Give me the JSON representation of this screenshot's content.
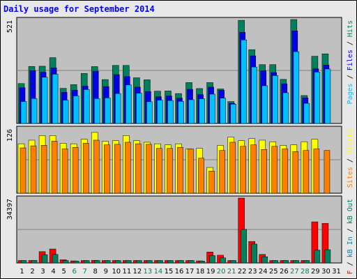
{
  "title": "Daily usage for September 2014",
  "colors": {
    "background": "#e8e8e8",
    "plot": "#c0c0c0",
    "hits": "#00805c",
    "files": "#0000e6",
    "pages": "#00c0ff",
    "visits": "#ffff00",
    "sites": "#ff8000",
    "kb_in": "#0080c0",
    "kb_out": "#00805c",
    "kb_f": "#ff0000",
    "weekday": "#000000",
    "weekend": "#00805c"
  },
  "chart_data": [
    {
      "type": "bar",
      "panel": "hits-files-pages",
      "ymax_label": "521",
      "ylim": [
        0,
        521
      ],
      "legend": {
        "pages": "Pages",
        "files": "Files",
        "hits": "Hits",
        "sep": " / "
      },
      "categories": [
        "1",
        "2",
        "3",
        "4",
        "5",
        "6",
        "7",
        "8",
        "9",
        "10",
        "11",
        "12",
        "13",
        "14",
        "15",
        "16",
        "17",
        "18",
        "19",
        "20",
        "21",
        "22",
        "23",
        "24",
        "25",
        "26",
        "27",
        "28",
        "29",
        "30",
        "31"
      ],
      "series": [
        {
          "name": "Hits",
          "values": [
            200,
            286,
            287,
            330,
            176,
            195,
            251,
            285,
            220,
            291,
            291,
            229,
            219,
            162,
            163,
            150,
            205,
            175,
            205,
            173,
            110,
            517,
            370,
            295,
            295,
            221,
            521,
            140,
            337,
            349,
            0
          ]
        },
        {
          "name": "Files",
          "values": [
            179,
            265,
            257,
            279,
            156,
            167,
            187,
            262,
            185,
            245,
            235,
            182,
            160,
            134,
            138,
            127,
            171,
            145,
            182,
            167,
            101,
            457,
            339,
            264,
            255,
            199,
            464,
            128,
            274,
            293,
            0
          ]
        },
        {
          "name": "Pages",
          "values": [
            110,
            125,
            232,
            247,
            117,
            138,
            170,
            125,
            128,
            150,
            193,
            152,
            109,
            117,
            115,
            111,
            119,
            124,
            147,
            127,
            97,
            419,
            283,
            189,
            240,
            154,
            360,
            101,
            258,
            273,
            0
          ]
        }
      ]
    },
    {
      "type": "bar",
      "panel": "visits-sites",
      "ymax_label": "126",
      "ylim": [
        0,
        126
      ],
      "legend": {
        "sites": "Sites",
        "visits": "Visits",
        "sep": " / "
      },
      "categories": [
        "1",
        "2",
        "3",
        "4",
        "5",
        "6",
        "7",
        "8",
        "9",
        "10",
        "11",
        "12",
        "13",
        "14",
        "15",
        "16",
        "17",
        "18",
        "19",
        "20",
        "21",
        "22",
        "23",
        "24",
        "25",
        "26",
        "27",
        "28",
        "29",
        "30",
        "31"
      ],
      "series": [
        {
          "name": "Visits",
          "values": [
            96,
            103,
            112,
            112,
            97,
            96,
            105,
            118,
            101,
            102,
            112,
            102,
            99,
            96,
            94,
            96,
            86,
            87,
            50,
            93,
            109,
            102,
            106,
            103,
            100,
            93,
            94,
            100,
            105,
            0,
            0
          ]
        },
        {
          "name": "Sites",
          "values": [
            88,
            92,
            93,
            101,
            86,
            89,
            97,
            103,
            94,
            95,
            99,
            96,
            95,
            87,
            87,
            89,
            86,
            68,
            43,
            83,
            99,
            91,
            94,
            85,
            91,
            86,
            81,
            83,
            86,
            83,
            0
          ]
        }
      ]
    },
    {
      "type": "bar",
      "panel": "kbytes",
      "ymax_label": "34397",
      "ylim": [
        0,
        34397
      ],
      "legend": {
        "kb_f": "kB F",
        "kb_in": "kB In",
        "kb_out": "kB Out",
        "sep": " / "
      },
      "categories": [
        "1",
        "2",
        "3",
        "4",
        "5",
        "6",
        "7",
        "8",
        "9",
        "10",
        "11",
        "12",
        "13",
        "14",
        "15",
        "16",
        "17",
        "18",
        "19",
        "20",
        "21",
        "22",
        "23",
        "24",
        "25",
        "26",
        "27",
        "28",
        "29",
        "30",
        "31"
      ],
      "series": [
        {
          "name": "kB F",
          "values": [
            1300,
            1300,
            6000,
            7400,
            1700,
            1100,
            1300,
            1400,
            1300,
            1300,
            1300,
            1300,
            1300,
            1300,
            1300,
            1300,
            1300,
            1100,
            5800,
            4100,
            1300,
            34397,
            11400,
            4500,
            1300,
            1300,
            1300,
            1300,
            21800,
            21000,
            0
          ]
        },
        {
          "name": "kB Out",
          "values": [
            1300,
            1400,
            4400,
            4500,
            1300,
            1000,
            1300,
            1300,
            1300,
            1300,
            1300,
            1300,
            1300,
            1300,
            1300,
            1300,
            1300,
            1000,
            3900,
            2700,
            1300,
            17800,
            10000,
            3300,
            1300,
            1300,
            1300,
            1300,
            6800,
            7000,
            0
          ]
        }
      ]
    }
  ],
  "days": [
    {
      "label": "1",
      "weekend": false
    },
    {
      "label": "2",
      "weekend": false
    },
    {
      "label": "3",
      "weekend": false
    },
    {
      "label": "4",
      "weekend": false
    },
    {
      "label": "5",
      "weekend": false
    },
    {
      "label": "6",
      "weekend": true
    },
    {
      "label": "7",
      "weekend": true
    },
    {
      "label": "8",
      "weekend": false
    },
    {
      "label": "9",
      "weekend": false
    },
    {
      "label": "10",
      "weekend": false
    },
    {
      "label": "11",
      "weekend": false
    },
    {
      "label": "12",
      "weekend": false
    },
    {
      "label": "13",
      "weekend": true
    },
    {
      "label": "14",
      "weekend": true
    },
    {
      "label": "15",
      "weekend": false
    },
    {
      "label": "16",
      "weekend": false
    },
    {
      "label": "17",
      "weekend": false
    },
    {
      "label": "18",
      "weekend": false
    },
    {
      "label": "19",
      "weekend": false
    },
    {
      "label": "20",
      "weekend": true
    },
    {
      "label": "21",
      "weekend": true
    },
    {
      "label": "22",
      "weekend": false
    },
    {
      "label": "23",
      "weekend": false
    },
    {
      "label": "24",
      "weekend": false
    },
    {
      "label": "25",
      "weekend": false
    },
    {
      "label": "26",
      "weekend": false
    },
    {
      "label": "27",
      "weekend": true
    },
    {
      "label": "28",
      "weekend": true
    },
    {
      "label": "29",
      "weekend": false
    },
    {
      "label": "30",
      "weekend": false
    },
    {
      "label": "31",
      "weekend": false
    }
  ]
}
